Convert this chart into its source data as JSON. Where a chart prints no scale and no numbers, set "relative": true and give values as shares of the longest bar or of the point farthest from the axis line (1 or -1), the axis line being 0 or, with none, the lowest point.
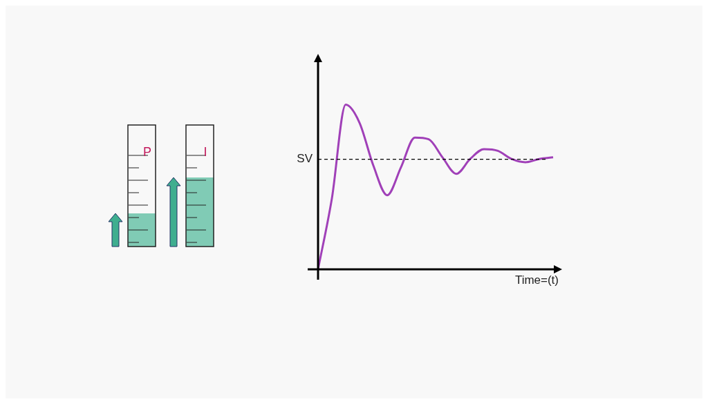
{
  "chart_data": {
    "type": "line",
    "relative": true,
    "xlabel": "Time=(t)",
    "categories": [
      null,
      null,
      null,
      null,
      null,
      null,
      null,
      null,
      null,
      null,
      null,
      null,
      null,
      null,
      null,
      null,
      null,
      null
    ],
    "series": [
      {
        "color": "#a040b8",
        "values": [
          0,
          0.43,
          1,
          0.89,
          0.63,
          0.45,
          0.62,
          0.8,
          0.79,
          0.68,
          0.58,
          0.67,
          0.73,
          0.72,
          0.67,
          0.65,
          0.67,
          0.68
        ]
      }
    ],
    "ref_lines": [
      {
        "axis": "y",
        "value": 0.668,
        "label": "SV",
        "color": "#000000",
        "line_style": "dashed"
      }
    ],
    "annotations": [
      "P",
      "I"
    ],
    "legend": false,
    "marker": "none"
  }
}
